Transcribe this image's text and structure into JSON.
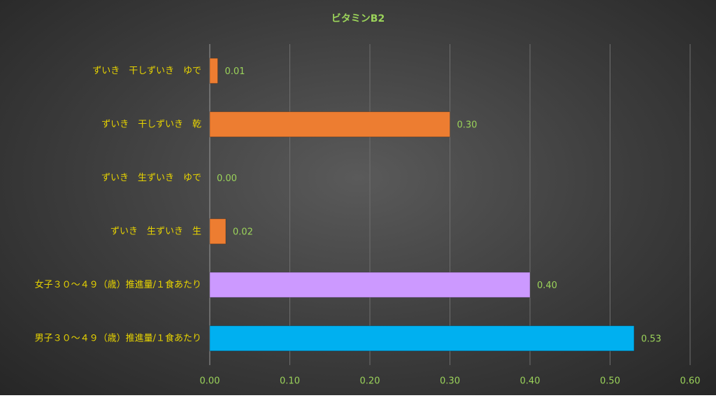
{
  "chart_data": {
    "type": "barh",
    "title": "ビタミンB2",
    "categories": [
      "ずいき　干しずいき　ゆで",
      "ずいき　干しずいき　乾",
      "ずいき　生ずいき　ゆで",
      "ずいき　生ずいき　生",
      "女子３０～４９（歳）推進量/１食あたり",
      "男子３０～４９（歳）推進量/１食あたり"
    ],
    "values": [
      0.01,
      0.3,
      0.0,
      0.02,
      0.4,
      0.53
    ],
    "value_labels": [
      "0.01",
      "0.30",
      "0.00",
      "0.02",
      "0.40",
      "0.53"
    ],
    "colors": [
      "#ed7d31",
      "#ed7d31",
      "#ed7d31",
      "#ed7d31",
      "#cc99ff",
      "#00b0f0"
    ],
    "xlim": [
      0,
      0.6
    ],
    "xticks": [
      {
        "value": 0,
        "label": "0.00"
      },
      {
        "value": 0.1,
        "label": "0.10"
      },
      {
        "value": 0.2,
        "label": "0.20"
      },
      {
        "value": 0.3,
        "label": "0.30"
      },
      {
        "value": 0.4,
        "label": "0.40"
      },
      {
        "value": 0.5,
        "label": "0.50"
      },
      {
        "value": 0.6,
        "label": "0.60"
      }
    ],
    "grid": true
  }
}
